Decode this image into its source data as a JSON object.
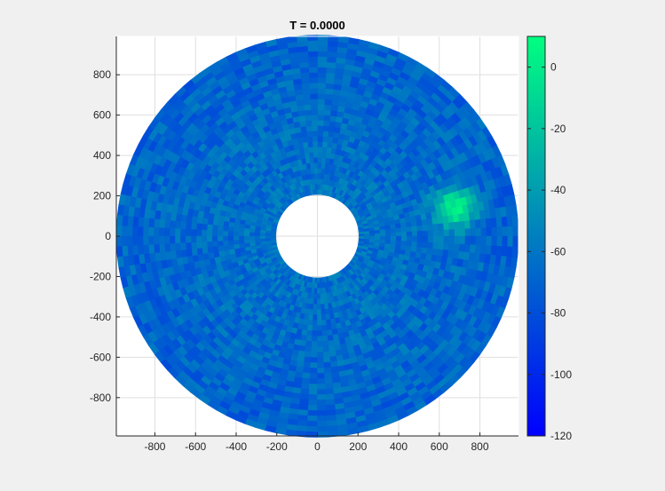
{
  "chart_data": {
    "type": "heatmap",
    "subtype": "polar-sector-heatmap",
    "title": "T = 0.0000",
    "xlabel": "",
    "ylabel": "",
    "xlim": [
      -990,
      990
    ],
    "ylim": [
      -990,
      990
    ],
    "xticks": [
      -800,
      -600,
      -400,
      -200,
      0,
      200,
      400,
      600,
      800
    ],
    "yticks": [
      -800,
      -600,
      -400,
      -200,
      0,
      200,
      400,
      600,
      800
    ],
    "grid": true,
    "polar_extent": {
      "r_inner": 205,
      "r_outer": 990
    },
    "field": {
      "background_level": -70,
      "hotspot": {
        "x": 680,
        "y": 140,
        "peak": 5
      }
    },
    "colorbar": {
      "location": "right",
      "clim": [
        -120,
        10
      ],
      "ticks": [
        0,
        -20,
        -40,
        -60,
        -80,
        -100,
        -120
      ],
      "colormap": [
        "#0000ff",
        "#00ff80"
      ]
    }
  }
}
